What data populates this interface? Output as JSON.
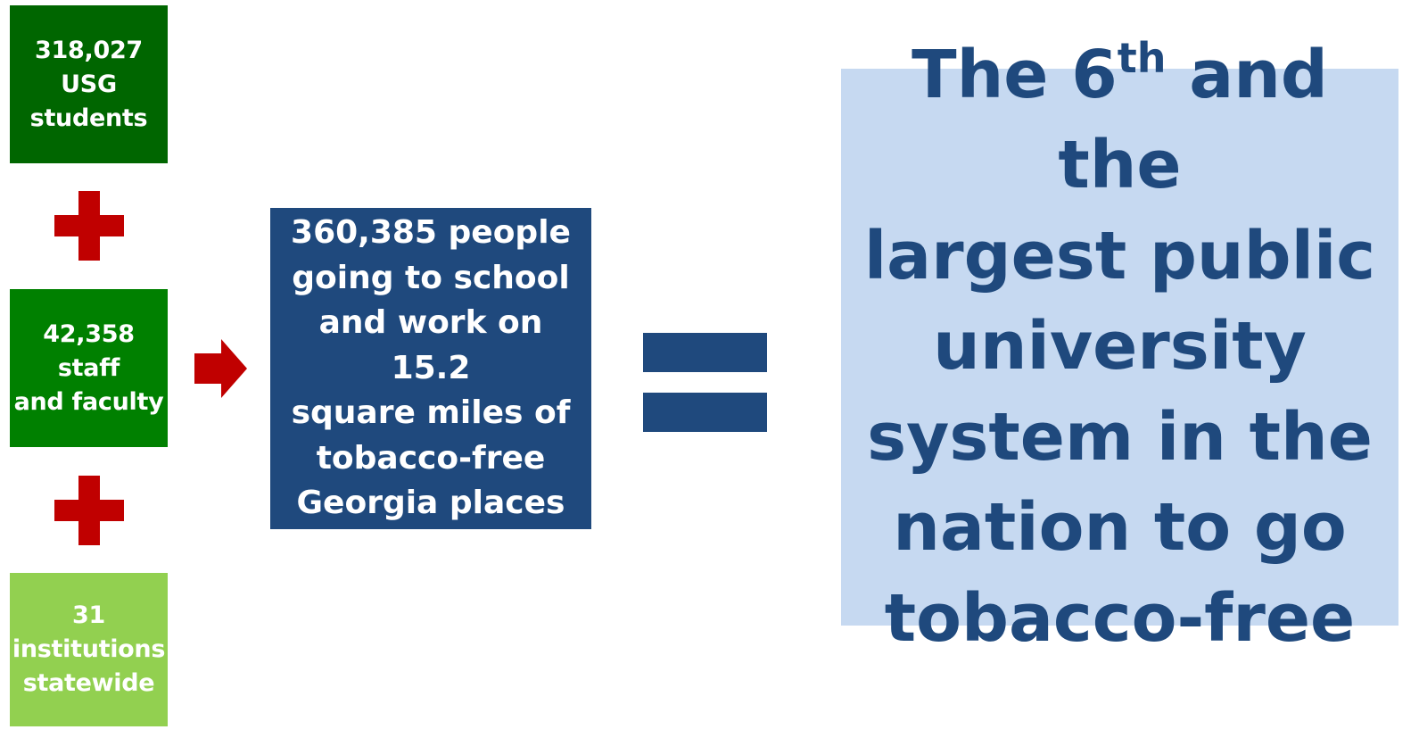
{
  "colors": {
    "students_box": "#006600",
    "staff_box": "#008000",
    "institutions_box": "#92d050",
    "plus_sign": "#c00000",
    "arrow": "#c00000",
    "result_box": "#1f497d",
    "equal_sign": "#1f497d",
    "conclusion_box": "#c6d9f1",
    "conclusion_text": "#1f497d",
    "box_text": "#ffffff"
  },
  "inputs": {
    "students": [
      "318,027",
      "USG",
      "students"
    ],
    "staff": [
      "42,358 staff",
      "and faculty"
    ],
    "institutions": [
      "31",
      "institutions",
      "statewide"
    ]
  },
  "operators": {
    "plus_icon": "plus-icon",
    "arrow_icon": "right-arrow-icon",
    "equals_icon": "equals-icon"
  },
  "result": {
    "lines": [
      "360,385 people",
      "going to school",
      "and work on 15.2",
      "square miles of",
      "tobacco-free",
      "Georgia places"
    ]
  },
  "conclusion": {
    "line1_pre": "The 6",
    "line1_sup": "th",
    "line1_post": " and the",
    "lines": [
      "largest public",
      "university",
      "system in the",
      "nation to go",
      "tobacco-free"
    ]
  }
}
